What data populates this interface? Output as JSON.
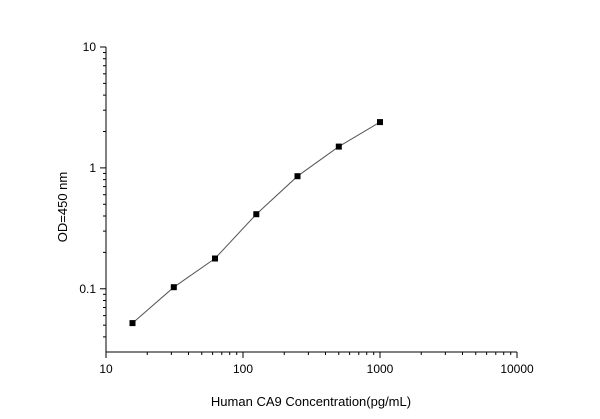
{
  "chart_data": {
    "type": "scatter",
    "title": "",
    "xlabel": "Human CA9 Concentration(pg/mL)",
    "ylabel": "OD=450 nm",
    "xscale": "log",
    "yscale": "log",
    "xlim": [
      10,
      10000
    ],
    "ylim": [
      0.03,
      10
    ],
    "grid": false,
    "legend": "none",
    "x_ticks": [
      10,
      100,
      1000,
      10000
    ],
    "x_tick_labels": [
      "10",
      "100",
      "1000",
      "10000"
    ],
    "y_ticks": [
      0.1,
      1,
      10
    ],
    "y_tick_labels": [
      "0.1",
      "1",
      "10"
    ],
    "series": [
      {
        "marker": "square",
        "line": true,
        "x": [
          15.6,
          31.25,
          62.5,
          125,
          250,
          500,
          1000
        ],
        "y": [
          0.052,
          0.103,
          0.178,
          0.414,
          0.854,
          1.5,
          2.39
        ]
      }
    ],
    "colors": {
      "axis": "#000000",
      "line": "#555555",
      "marker": "#000000"
    }
  }
}
